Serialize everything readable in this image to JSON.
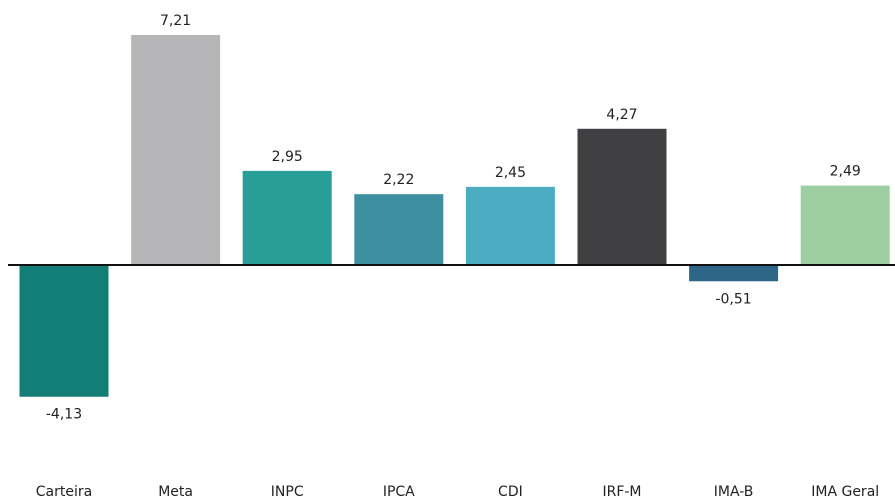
{
  "chart_data": {
    "type": "bar",
    "categories": [
      "Carteira",
      "Meta",
      "INPC",
      "IPCA",
      "CDI",
      "IRF-M",
      "IMA-B",
      "IMA Geral"
    ],
    "values": [
      -4.13,
      7.21,
      2.95,
      2.22,
      2.45,
      4.27,
      -0.51,
      2.49
    ],
    "value_labels": [
      "-4,13",
      "7,21",
      "2,95",
      "2,22",
      "2,45",
      "4,27",
      "-0,51",
      "2,49"
    ],
    "colors": [
      "#137e76",
      "#b6b6b8",
      "#279e98",
      "#3e8fa0",
      "#4bacc2",
      "#404042",
      "#2e6688",
      "#9dcfa2"
    ]
  }
}
